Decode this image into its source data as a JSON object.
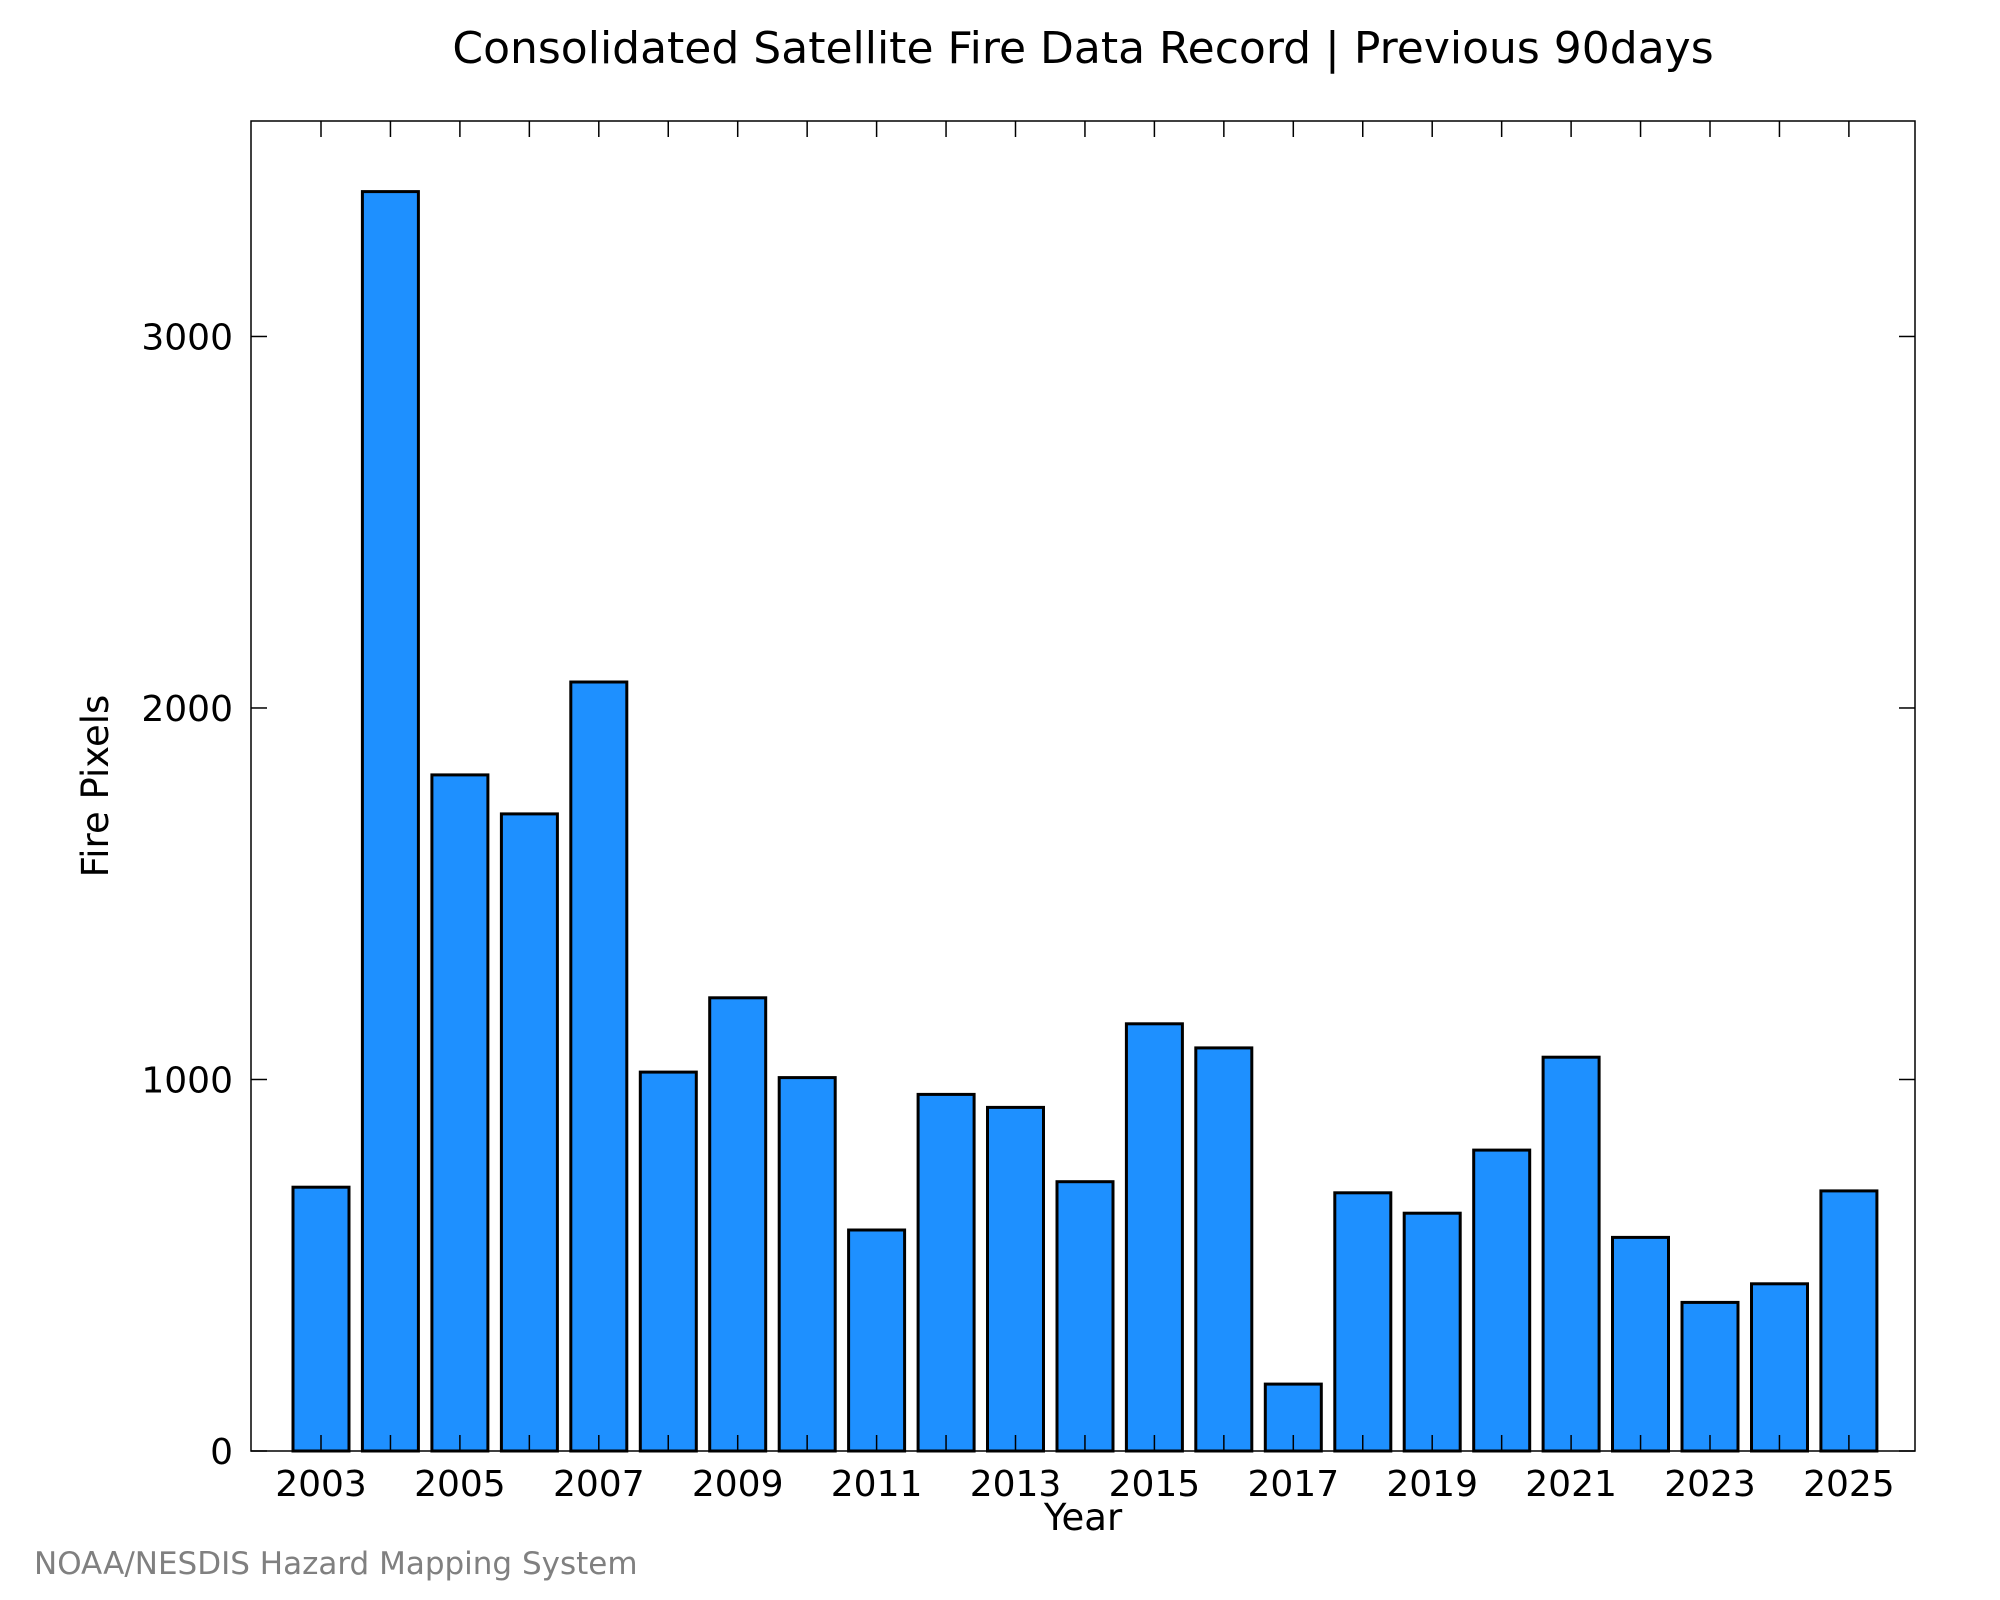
{
  "chart_data": {
    "type": "bar",
    "title": "Consolidated Satellite Fire Data Record | Previous 90days",
    "xlabel": "Year",
    "ylabel": "Fire Pixels",
    "categories": [
      "2003",
      "2004",
      "2005",
      "2006",
      "2007",
      "2008",
      "2009",
      "2010",
      "2011",
      "2012",
      "2013",
      "2014",
      "2015",
      "2016",
      "2017",
      "2018",
      "2019",
      "2020",
      "2021",
      "2022",
      "2023",
      "2024",
      "2025"
    ],
    "values": [
      710,
      3390,
      1820,
      1715,
      2070,
      1020,
      1220,
      1005,
      595,
      960,
      925,
      725,
      1150,
      1085,
      180,
      695,
      640,
      810,
      1060,
      575,
      400,
      450,
      700
    ],
    "x_tick_labels": [
      "2003",
      "2005",
      "2007",
      "2009",
      "2011",
      "2013",
      "2015",
      "2017",
      "2019",
      "2021",
      "2023",
      "2025"
    ],
    "y_ticks": [
      0,
      1000,
      2000,
      3000
    ],
    "ylim": [
      0,
      3580
    ],
    "grid": false,
    "legend": "none",
    "bar_color": "#1E90FF",
    "edge_color": "#000000"
  },
  "credit": "NOAA/NESDIS Hazard Mapping System"
}
